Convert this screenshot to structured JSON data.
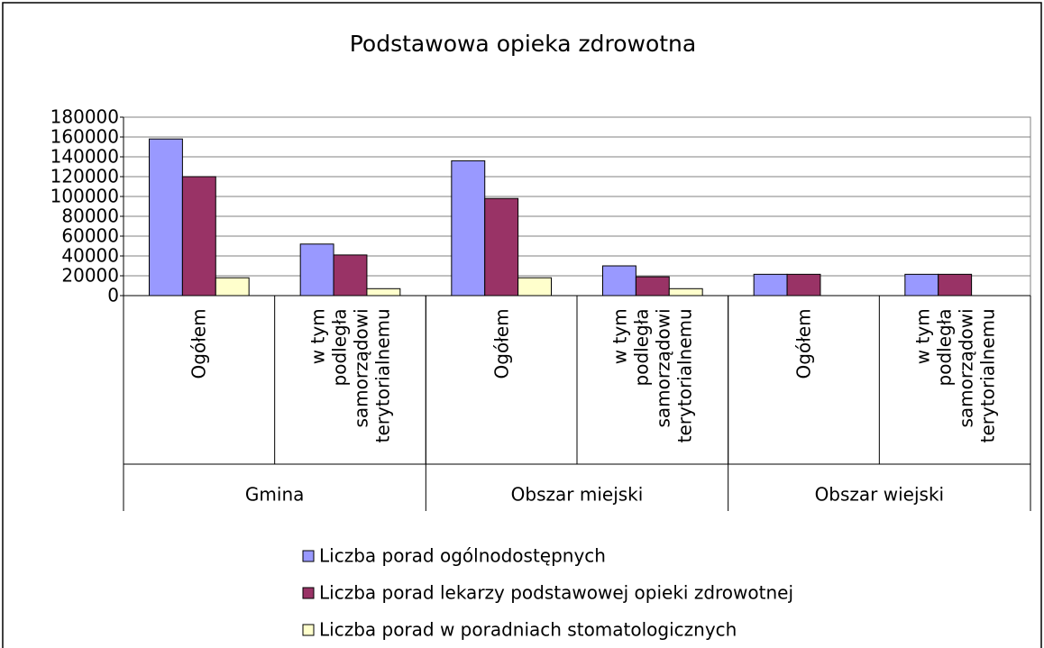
{
  "chart_data": {
    "type": "bar",
    "title": "Podstawowa opieka zdrowotna",
    "groups": [
      "Gmina",
      "Obszar miejski",
      "Obszar wiejski"
    ],
    "categories": [
      "Ogółem",
      "w tym\npodległa\nsamorządowi\nterytorialnemu",
      "Ogółem",
      "w tym\npodległa\nsamorządowi\nterytorialnemu",
      "Ogółem",
      "w tym\npodległa\nsamorządowi\nterytorialnemu"
    ],
    "series": [
      {
        "name": "Liczba porad ogólnodostępnych",
        "color": "#9999ff",
        "values": [
          158000,
          52000,
          136000,
          30000,
          21500,
          21500
        ]
      },
      {
        "name": "Liczba porad lekarzy podstawowej opieki zdrowotnej",
        "color": "#993366",
        "values": [
          120000,
          41000,
          98000,
          19000,
          21500,
          21500
        ]
      },
      {
        "name": "Liczba porad w poradniach stomatologicznych",
        "color": "#ffffcc",
        "values": [
          18000,
          7000,
          18000,
          7000,
          0,
          0
        ]
      }
    ],
    "ylim": [
      0,
      180000
    ],
    "yticks": [
      0,
      20000,
      40000,
      60000,
      80000,
      100000,
      120000,
      140000,
      160000,
      180000
    ],
    "grid": true,
    "legend": "bottom"
  }
}
